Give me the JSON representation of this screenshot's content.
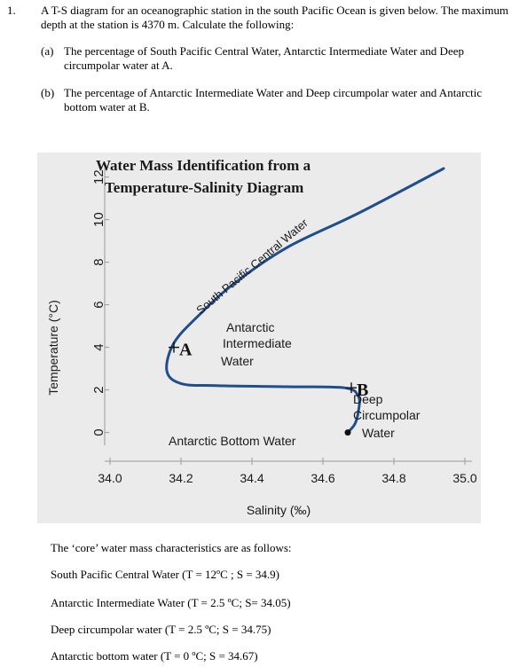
{
  "question": {
    "number": "1.",
    "intro": "A T-S diagram for an oceanographic station in the south Pacific Ocean is given below. The maximum depth at the station is 4370 m.  Calculate the following:",
    "parts": [
      {
        "label": "(a)",
        "text": "The percentage of South Pacific Central Water, Antarctic Intermediate Water and Deep circumpolar water at A."
      },
      {
        "label": "(b)",
        "text": "The percentage of Antarctic Intermediate Water and Deep circumpolar water and Antarctic bottom water at B."
      }
    ]
  },
  "chart_data": {
    "type": "line",
    "title_line1": "Water Mass Identification from a",
    "title_line2": "Temperature-Salinity Diagram",
    "xlabel": "Salinity (‰)",
    "ylabel": "Temperature (°C)",
    "xlim": [
      34.0,
      35.0
    ],
    "ylim": [
      -0.6,
      12.4
    ],
    "x_ticks": [
      "34.0",
      "34.2",
      "34.4",
      "34.6",
      "34.8",
      "35.0"
    ],
    "y_ticks": [
      "0",
      "2",
      "4",
      "6",
      "8",
      "10",
      "12"
    ],
    "series": [
      {
        "name": "",
        "x": [
          34.94,
          34.7,
          34.5,
          34.35,
          34.25,
          34.18,
          34.16,
          34.2,
          34.3,
          34.5,
          34.66,
          34.7,
          34.7,
          34.69,
          34.67
        ],
        "y": [
          12.4,
          10.3,
          8.7,
          7.0,
          5.5,
          4.2,
          2.9,
          2.3,
          2.2,
          2.15,
          2.1,
          1.7,
          1.0,
          0.4,
          0.0
        ]
      }
    ],
    "points": [
      {
        "label": "A",
        "x": 34.18,
        "y": 4.0
      },
      {
        "label": "B",
        "x": 34.68,
        "y": 2.1
      }
    ],
    "annotations": {
      "spcw": "South Pacific Central Water",
      "aiw_1": "Antarctic",
      "aiw_2": "Intermediate",
      "aiw_3": "Water",
      "dcw_1": "Deep",
      "dcw_2": "Circumpolar",
      "dcw_3": "Water",
      "abw": "Antarctic Bottom Water"
    },
    "colors": {
      "curve": "#1f4e8c",
      "text": "#1a1a1a"
    }
  },
  "core": {
    "title": "The ‘core’ water mass characteristics are as follows:",
    "items": [
      "South Pacific Central Water (T = 12ºC ; S = 34.9)",
      "Antarctic Intermediate Water (T = 2.5 ºC; S= 34.05)",
      "Deep circumpolar water (T = 2.5 ºC; S = 34.75)",
      "Antarctic bottom water (T = 0 ºC; S = 34.67)"
    ]
  }
}
